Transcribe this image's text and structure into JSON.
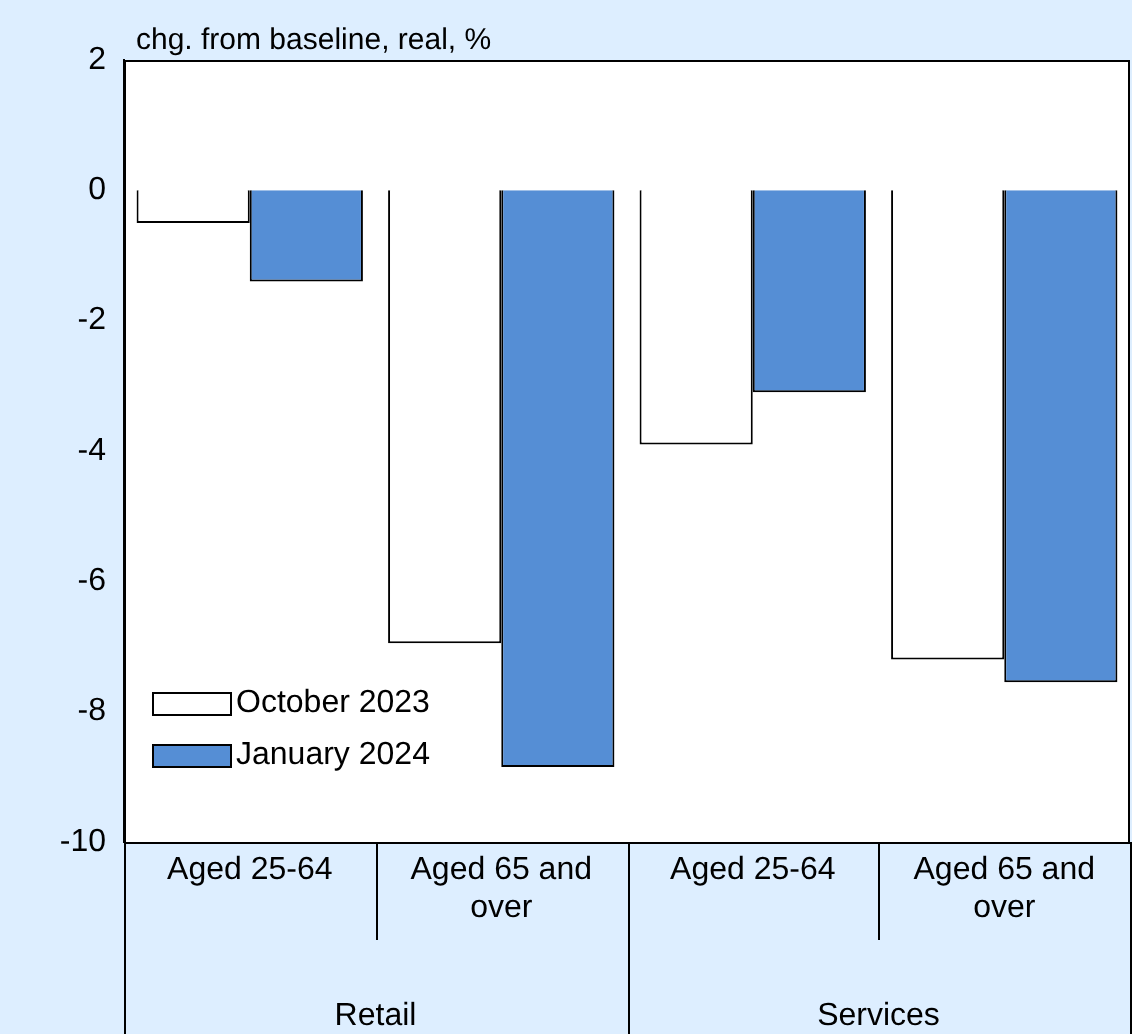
{
  "chart_data": {
    "type": "bar",
    "ylabel": "chg. from baseline, real, %",
    "categories": [
      "Aged 25-64",
      "Aged 65 and over",
      "Aged 25-64",
      "Aged 65 and over"
    ],
    "series": [
      {
        "name": "October 2023",
        "color": "#ffffff",
        "values": [
          -0.5,
          -6.95,
          -3.9,
          -7.2
        ]
      },
      {
        "name": "January 2024",
        "color": "#558ed5",
        "values": [
          -1.4,
          -8.85,
          -3.1,
          -7.55
        ]
      }
    ],
    "annotations": [
      "Retail",
      "Services"
    ],
    "ylim": [
      -10,
      2
    ],
    "yticks": [
      -10,
      -8,
      -6,
      -4,
      -2,
      0,
      2
    ],
    "grid": false,
    "legend": "bottom left"
  }
}
